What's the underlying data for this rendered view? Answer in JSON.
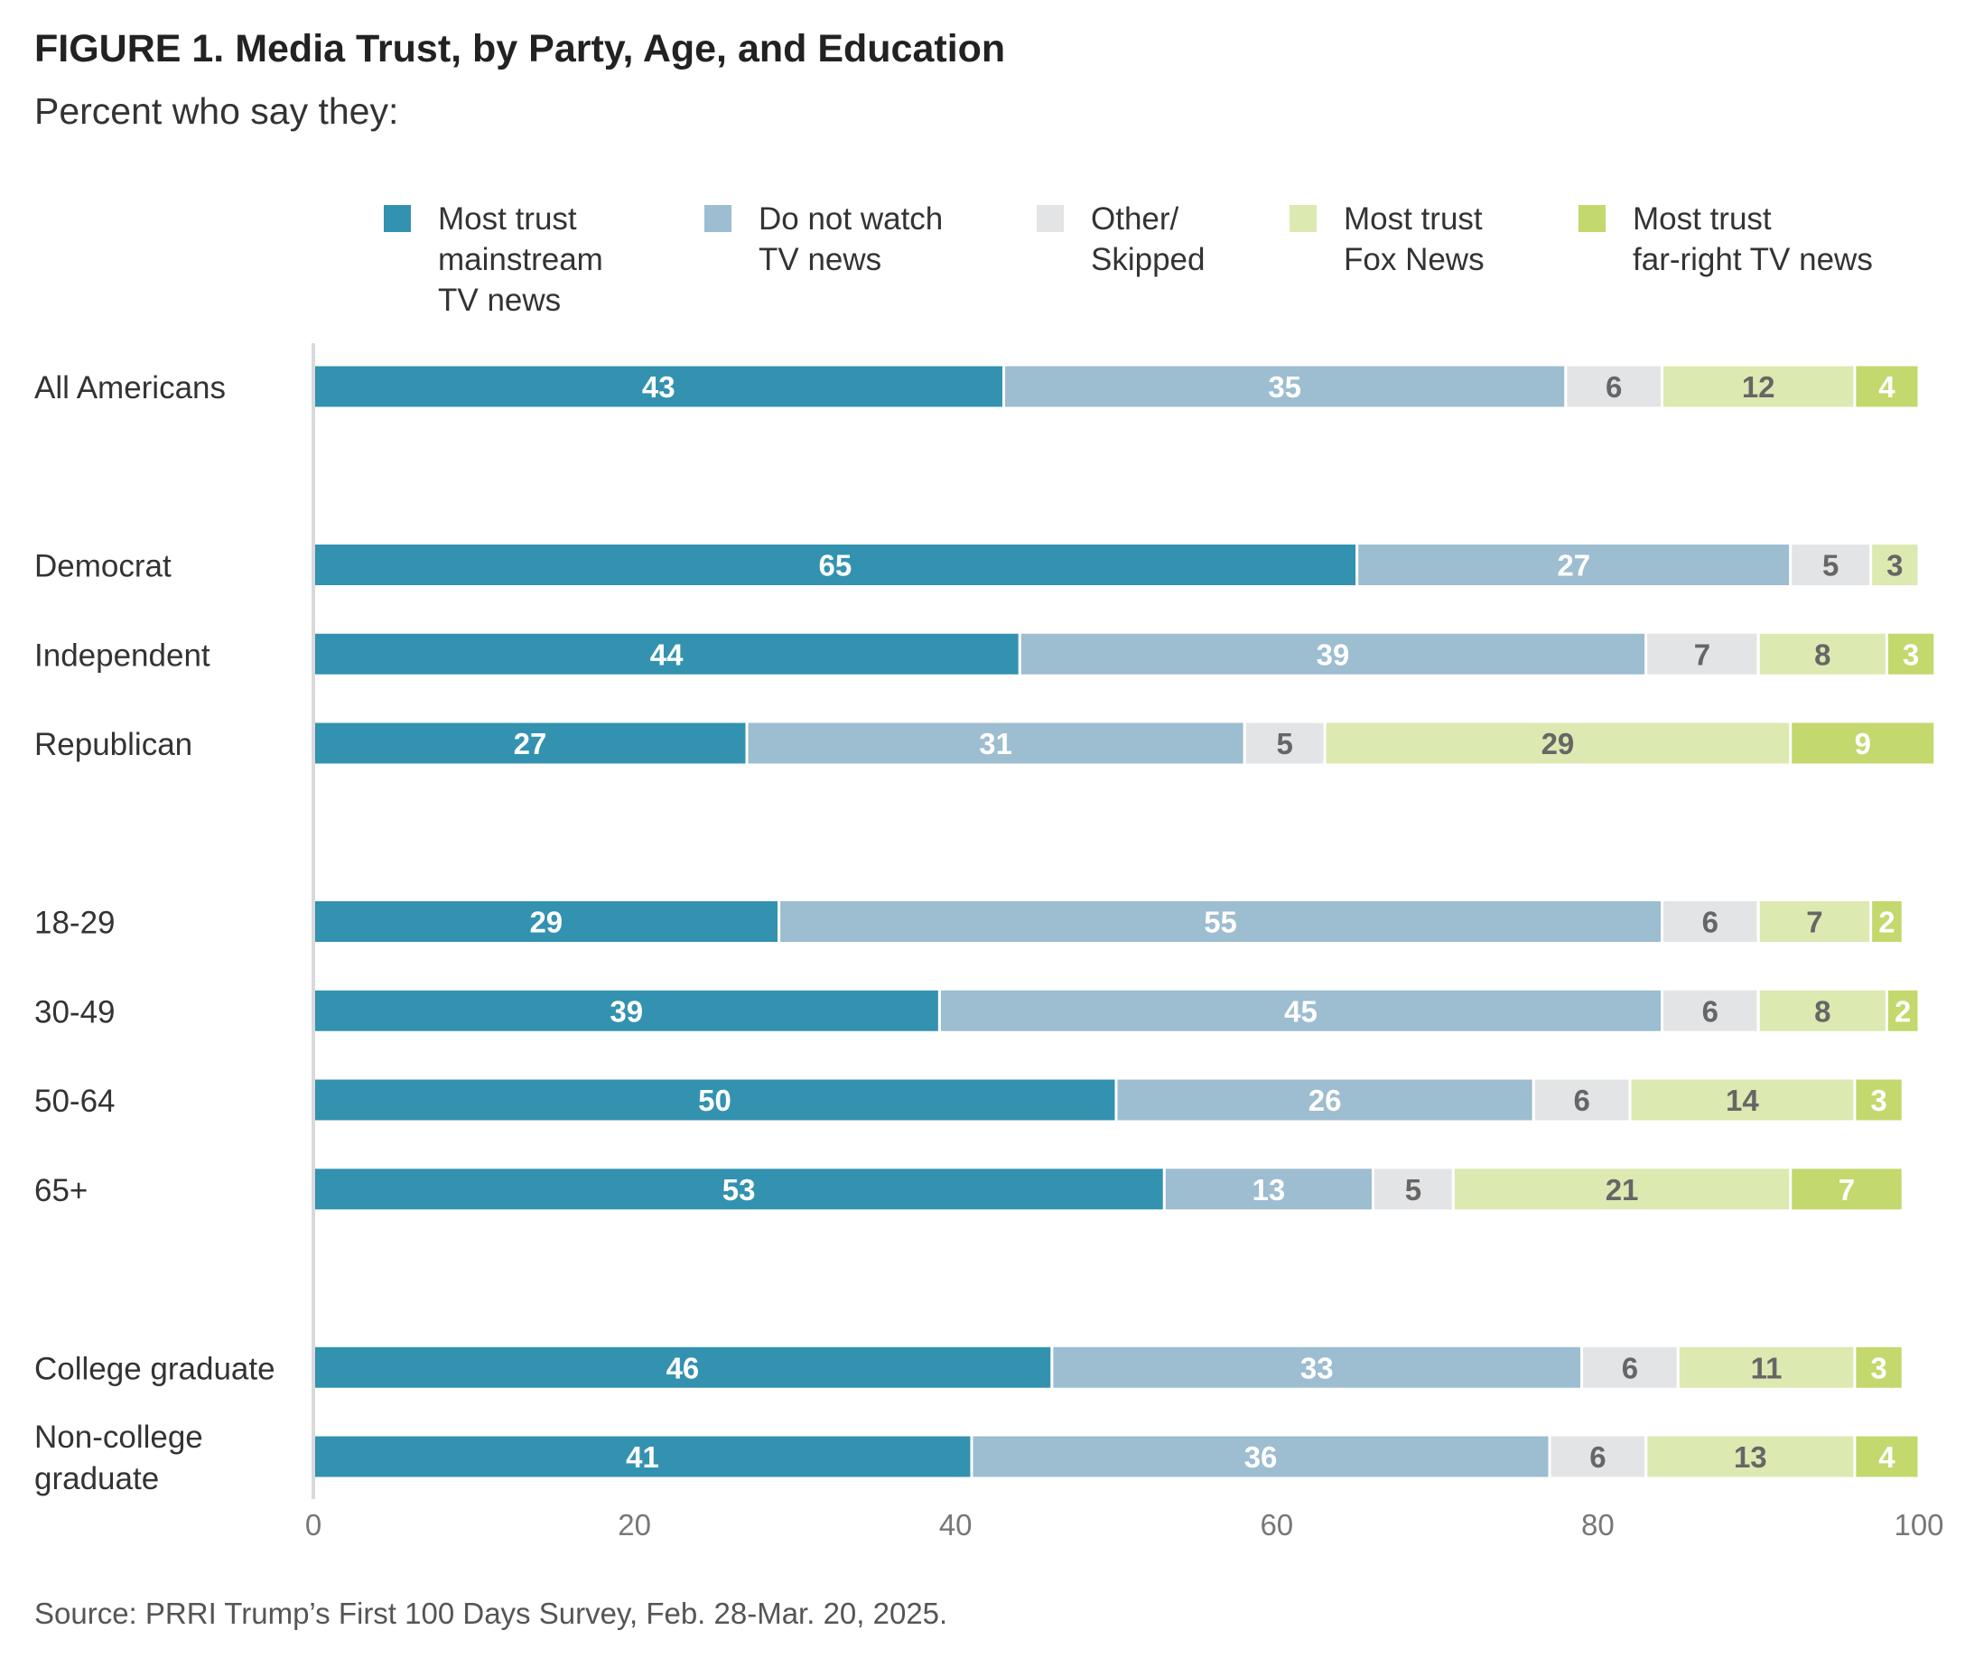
{
  "figure": {
    "title": "FIGURE 1.  Media Trust, by Party, Age, and Education",
    "subtitle": "Percent who say they:",
    "source": "Source: PRRI Trump’s First 100 Days Survey, Feb. 28-Mar. 20, 2025."
  },
  "chart_data": {
    "type": "bar",
    "orientation": "horizontal",
    "stacked": true,
    "xlim": [
      0,
      100
    ],
    "xticks": [
      0,
      20,
      40,
      60,
      80,
      100
    ],
    "grid": false,
    "legend_position": "top",
    "colors": [
      "#3392b0",
      "#9dbdd0",
      "#e3e4e6",
      "#dce9b1",
      "#c3d86d"
    ],
    "label_colors": [
      "#ffffff",
      "#ffffff",
      "#666666",
      "#666666",
      "#ffffff"
    ],
    "series": [
      {
        "legend": [
          "Most trust",
          "mainstream",
          "TV news"
        ]
      },
      {
        "legend": [
          "Do not watch",
          "TV news"
        ]
      },
      {
        "legend": [
          "Other/",
          "Skipped"
        ]
      },
      {
        "legend": [
          "Most trust",
          "Fox News"
        ]
      },
      {
        "legend": [
          "Most trust",
          "far-right TV news"
        ]
      }
    ],
    "categories": [
      {
        "label": [
          "All Americans"
        ],
        "values": [
          43,
          35,
          6,
          12,
          4
        ],
        "group": 0
      },
      {
        "label": [
          "Democrat"
        ],
        "values": [
          65,
          27,
          5,
          3,
          0
        ],
        "group": 1
      },
      {
        "label": [
          "Independent"
        ],
        "values": [
          44,
          39,
          7,
          8,
          3
        ],
        "group": 1
      },
      {
        "label": [
          "Republican"
        ],
        "values": [
          27,
          31,
          5,
          29,
          9
        ],
        "group": 1
      },
      {
        "label": [
          "18-29"
        ],
        "values": [
          29,
          55,
          6,
          7,
          2
        ],
        "group": 2
      },
      {
        "label": [
          "30-49"
        ],
        "values": [
          39,
          45,
          6,
          8,
          2
        ],
        "group": 2
      },
      {
        "label": [
          "50-64"
        ],
        "values": [
          50,
          26,
          6,
          14,
          3
        ],
        "group": 2
      },
      {
        "label": [
          "65+"
        ],
        "values": [
          53,
          13,
          5,
          21,
          7
        ],
        "group": 2
      },
      {
        "label": [
          "College graduate"
        ],
        "values": [
          46,
          33,
          6,
          11,
          3
        ],
        "group": 3
      },
      {
        "label": [
          "Non-college",
          "graduate"
        ],
        "values": [
          41,
          36,
          6,
          13,
          4
        ],
        "group": 3
      }
    ]
  }
}
